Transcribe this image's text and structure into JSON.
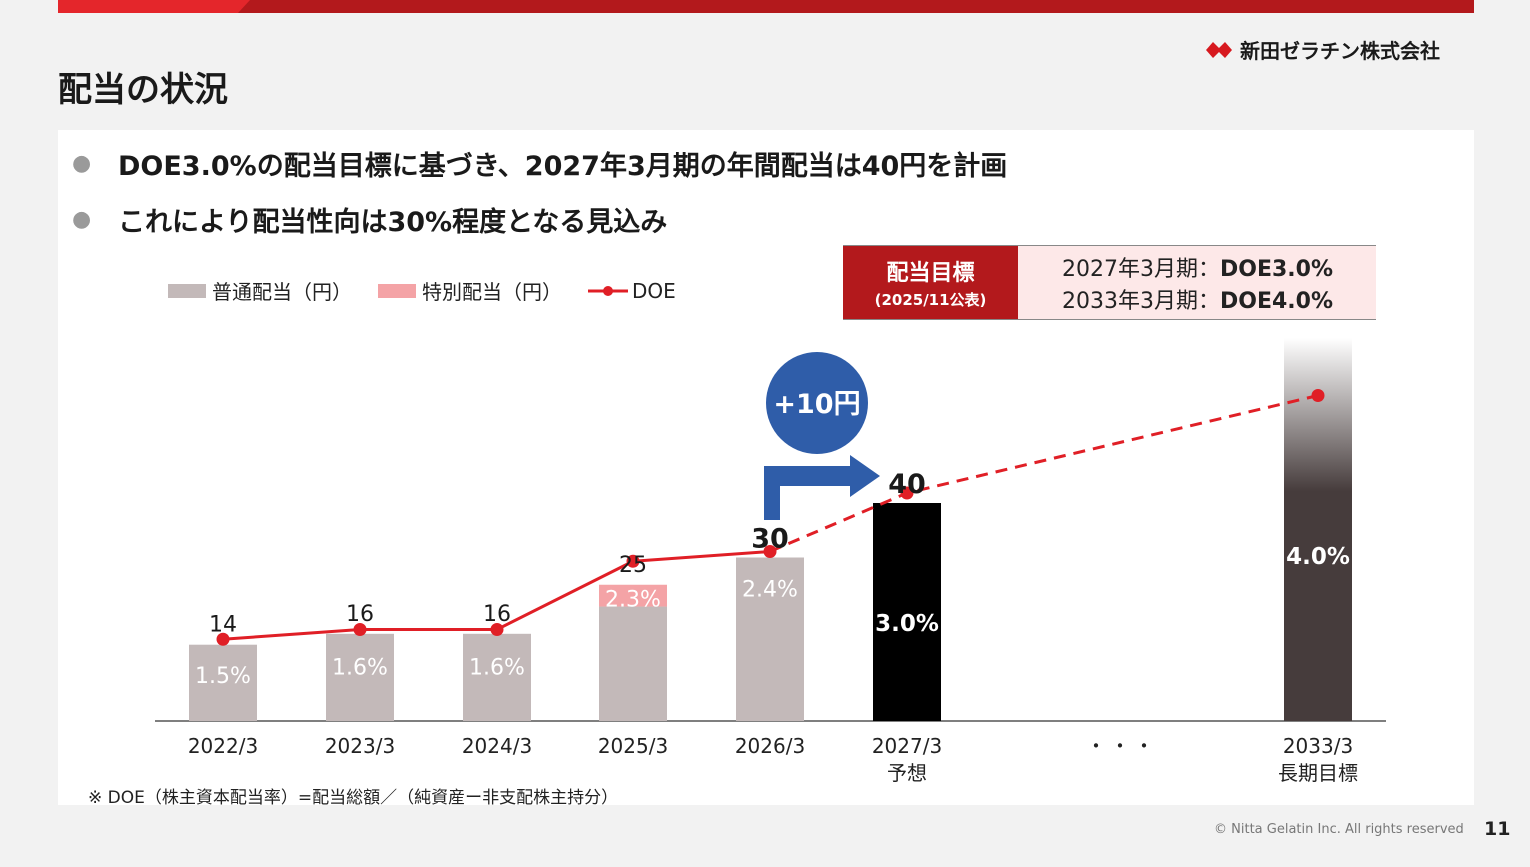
{
  "header": {
    "title": "配当の状況",
    "logo_text": "新田ゼラチン株式会社"
  },
  "bullets": [
    "DOE3.0%の配当目標に基づき、2027年3月期の年間配当は40円を計画",
    "これにより配当性向は30%程度となる見込み"
  ],
  "legend": {
    "regular": "普通配当（円）",
    "special": "特別配当（円）",
    "doe": "DOE"
  },
  "target": {
    "label": "配当目標",
    "sublabel": "(2025/11公表)",
    "line1_prefix": "2027年3月期：",
    "line1_value": "DOE3.0%",
    "line2_prefix": "2033年3月期：",
    "line2_value": "DOE4.0%"
  },
  "annotation": {
    "increase": "+10円",
    "ellipsis": "・・・"
  },
  "footnote": "※ DOE（株主資本配当率）=配当総額／（純資産ー非支配株主持分）",
  "copyright": "© Nitta Gelatin Inc. All rights reserved",
  "page_number": "11",
  "colors": {
    "brand_red": "#b3191c",
    "regular_bar": "#c3b9b9",
    "special_bar": "#f4a3a6",
    "forecast_bar": "#000000",
    "longterm_bar": "#463c3c",
    "doe_line": "#e01f26",
    "circle_blue": "#2f5da9"
  },
  "chart_data": {
    "type": "bar",
    "categories": [
      "2022/3",
      "2023/3",
      "2024/3",
      "2025/3",
      "2026/3",
      "2027/3",
      "2033/3"
    ],
    "category_sublabels": [
      "",
      "",
      "",
      "",
      "",
      "予想",
      "長期目標"
    ],
    "series": [
      {
        "name": "普通配当（円）",
        "values": [
          14,
          16,
          16,
          21,
          30,
          40,
          null
        ]
      },
      {
        "name": "特別配当（円）",
        "values": [
          0,
          0,
          0,
          4,
          0,
          0,
          null
        ]
      }
    ],
    "totals": [
      14,
      16,
      16,
      25,
      30,
      40,
      null
    ],
    "total_labels": [
      "14",
      "16",
      "16",
      "25",
      "30",
      "40",
      ""
    ],
    "doe": {
      "name": "DOE",
      "values": [
        1.5,
        1.6,
        1.6,
        2.3,
        2.4,
        3.0,
        4.0
      ],
      "labels": [
        "1.5%",
        "1.6%",
        "1.6%",
        "2.3%",
        "2.4%",
        "3.0%",
        "4.0%"
      ]
    },
    "legend_position": "top-left",
    "grid": false
  }
}
